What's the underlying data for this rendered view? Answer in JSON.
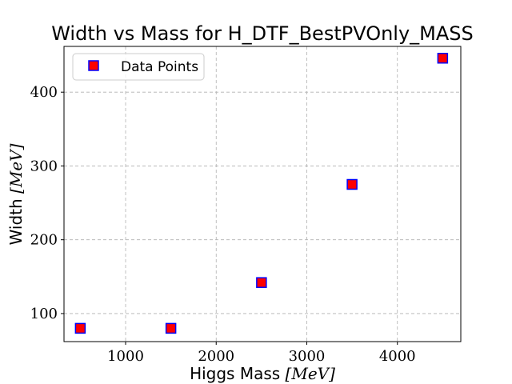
{
  "chart_data": {
    "type": "scatter",
    "title": "Width vs Mass for H_DTF_BestPVOnly_MASS",
    "xlabel": {
      "text": "Higgs Mass ",
      "unit": "[MeV]"
    },
    "ylabel": {
      "text": "Width ",
      "unit": "[MeV]"
    },
    "xlim": [
      320,
      4700
    ],
    "ylim": [
      62,
      462
    ],
    "xticks": [
      1000,
      2000,
      3000,
      4000
    ],
    "yticks": [
      100,
      200,
      300,
      400
    ],
    "grid": true,
    "legend_position": "top-left",
    "series": [
      {
        "name": "Data Points",
        "marker": "square",
        "face_color": "#ff0000",
        "edge_color": "#0000ff",
        "x": [
          500,
          1500,
          2500,
          3500,
          4500
        ],
        "y": [
          80,
          80,
          142,
          275,
          446
        ]
      }
    ]
  }
}
